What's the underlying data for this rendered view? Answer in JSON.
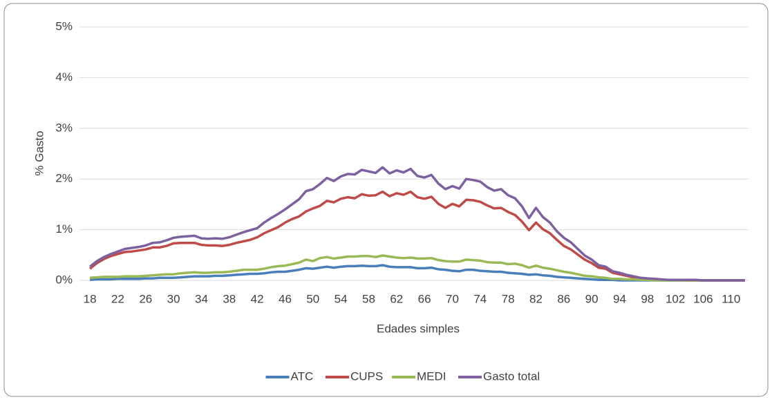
{
  "chart_data": {
    "type": "line",
    "x_label": "Edades simples",
    "y_label": "% Gasto",
    "x": [
      18,
      19,
      20,
      21,
      22,
      23,
      24,
      25,
      26,
      27,
      28,
      29,
      30,
      31,
      32,
      33,
      34,
      35,
      36,
      37,
      38,
      39,
      40,
      41,
      42,
      43,
      44,
      45,
      46,
      47,
      48,
      49,
      50,
      51,
      52,
      53,
      54,
      55,
      56,
      57,
      58,
      59,
      60,
      61,
      62,
      63,
      64,
      65,
      66,
      67,
      68,
      69,
      70,
      71,
      72,
      73,
      74,
      75,
      76,
      77,
      78,
      79,
      80,
      81,
      82,
      83,
      84,
      85,
      86,
      87,
      88,
      89,
      90,
      91,
      92,
      93,
      94,
      95,
      96,
      97,
      98,
      99,
      100,
      101,
      102,
      103,
      104,
      105,
      106,
      107,
      108,
      109,
      110,
      111,
      112
    ],
    "xlim": [
      16.5,
      112.5
    ],
    "xticks": [
      18,
      22,
      26,
      30,
      34,
      38,
      42,
      46,
      50,
      54,
      58,
      62,
      66,
      70,
      74,
      78,
      82,
      86,
      90,
      94,
      98,
      102,
      106,
      110
    ],
    "ylim": [
      0,
      5
    ],
    "yticks": [
      {
        "value": 0,
        "label": "0%"
      },
      {
        "value": 1,
        "label": "1%"
      },
      {
        "value": 2,
        "label": "2%"
      },
      {
        "value": 3,
        "label": "3%"
      },
      {
        "value": 4,
        "label": "4%"
      },
      {
        "value": 5,
        "label": "5%"
      }
    ],
    "grid": true,
    "legend": "bottom",
    "series": [
      {
        "name": "ATC",
        "color": "#4a7ebb",
        "values": [
          0.01,
          0.02,
          0.02,
          0.02,
          0.03,
          0.03,
          0.03,
          0.03,
          0.04,
          0.04,
          0.05,
          0.05,
          0.05,
          0.06,
          0.07,
          0.08,
          0.08,
          0.08,
          0.09,
          0.09,
          0.1,
          0.11,
          0.12,
          0.13,
          0.13,
          0.14,
          0.16,
          0.17,
          0.17,
          0.19,
          0.21,
          0.24,
          0.23,
          0.25,
          0.27,
          0.25,
          0.27,
          0.28,
          0.28,
          0.29,
          0.28,
          0.28,
          0.3,
          0.27,
          0.26,
          0.26,
          0.26,
          0.24,
          0.24,
          0.25,
          0.22,
          0.21,
          0.19,
          0.18,
          0.21,
          0.21,
          0.19,
          0.18,
          0.17,
          0.17,
          0.15,
          0.14,
          0.13,
          0.11,
          0.12,
          0.1,
          0.09,
          0.07,
          0.06,
          0.05,
          0.04,
          0.03,
          0.02,
          0.01,
          0.01,
          0.01,
          0,
          0,
          0,
          0,
          0,
          0,
          0,
          0,
          0,
          0,
          0,
          0,
          0,
          0,
          0,
          0,
          0,
          0,
          0
        ]
      },
      {
        "name": "CUPS",
        "color": "#be4b48",
        "values": [
          0.23,
          0.34,
          0.42,
          0.48,
          0.52,
          0.56,
          0.57,
          0.59,
          0.61,
          0.65,
          0.65,
          0.68,
          0.73,
          0.74,
          0.74,
          0.74,
          0.7,
          0.69,
          0.69,
          0.68,
          0.7,
          0.74,
          0.77,
          0.8,
          0.85,
          0.93,
          0.99,
          1.05,
          1.14,
          1.21,
          1.26,
          1.36,
          1.42,
          1.47,
          1.57,
          1.54,
          1.61,
          1.64,
          1.62,
          1.7,
          1.67,
          1.68,
          1.75,
          1.66,
          1.72,
          1.69,
          1.75,
          1.64,
          1.61,
          1.65,
          1.51,
          1.43,
          1.51,
          1.46,
          1.59,
          1.58,
          1.55,
          1.48,
          1.42,
          1.43,
          1.35,
          1.29,
          1.16,
          0.99,
          1.14,
          1.01,
          0.93,
          0.8,
          0.68,
          0.61,
          0.51,
          0.41,
          0.34,
          0.25,
          0.23,
          0.15,
          0.12,
          0.09,
          0.06,
          0.04,
          0.03,
          0.02,
          0.01,
          0.01,
          0.01,
          0,
          0,
          0,
          0,
          0,
          0,
          0,
          0,
          0,
          0
        ]
      },
      {
        "name": "MEDI",
        "color": "#98b954",
        "values": [
          0.05,
          0.06,
          0.07,
          0.07,
          0.07,
          0.08,
          0.08,
          0.08,
          0.09,
          0.1,
          0.11,
          0.12,
          0.12,
          0.14,
          0.15,
          0.16,
          0.15,
          0.15,
          0.16,
          0.16,
          0.17,
          0.19,
          0.21,
          0.21,
          0.21,
          0.23,
          0.26,
          0.28,
          0.29,
          0.32,
          0.35,
          0.41,
          0.38,
          0.44,
          0.46,
          0.43,
          0.45,
          0.47,
          0.47,
          0.48,
          0.48,
          0.46,
          0.49,
          0.47,
          0.45,
          0.44,
          0.45,
          0.43,
          0.43,
          0.44,
          0.4,
          0.38,
          0.37,
          0.37,
          0.41,
          0.4,
          0.39,
          0.36,
          0.35,
          0.35,
          0.32,
          0.33,
          0.3,
          0.25,
          0.29,
          0.25,
          0.23,
          0.2,
          0.17,
          0.15,
          0.12,
          0.09,
          0.08,
          0.06,
          0.05,
          0.03,
          0.03,
          0.02,
          0.02,
          0.01,
          0.01,
          0,
          0,
          0,
          0,
          0,
          0,
          0,
          0,
          0,
          0,
          0,
          0,
          0,
          0
        ]
      },
      {
        "name": "Gasto total",
        "color": "#7d60a0",
        "values": [
          0.27,
          0.38,
          0.46,
          0.52,
          0.57,
          0.62,
          0.64,
          0.66,
          0.69,
          0.74,
          0.75,
          0.79,
          0.84,
          0.86,
          0.87,
          0.88,
          0.83,
          0.82,
          0.83,
          0.82,
          0.85,
          0.9,
          0.95,
          0.99,
          1.03,
          1.14,
          1.23,
          1.31,
          1.4,
          1.5,
          1.6,
          1.76,
          1.8,
          1.9,
          2.02,
          1.96,
          2.05,
          2.1,
          2.09,
          2.18,
          2.15,
          2.12,
          2.23,
          2.11,
          2.17,
          2.13,
          2.2,
          2.06,
          2.03,
          2.08,
          1.91,
          1.8,
          1.86,
          1.81,
          2.0,
          1.98,
          1.95,
          1.84,
          1.77,
          1.8,
          1.68,
          1.62,
          1.46,
          1.23,
          1.43,
          1.25,
          1.14,
          0.97,
          0.84,
          0.75,
          0.62,
          0.49,
          0.41,
          0.3,
          0.27,
          0.18,
          0.15,
          0.11,
          0.08,
          0.05,
          0.04,
          0.03,
          0.02,
          0.01,
          0.01,
          0.01,
          0.01,
          0.01,
          0,
          0,
          0,
          0,
          0,
          0,
          0
        ]
      }
    ]
  }
}
